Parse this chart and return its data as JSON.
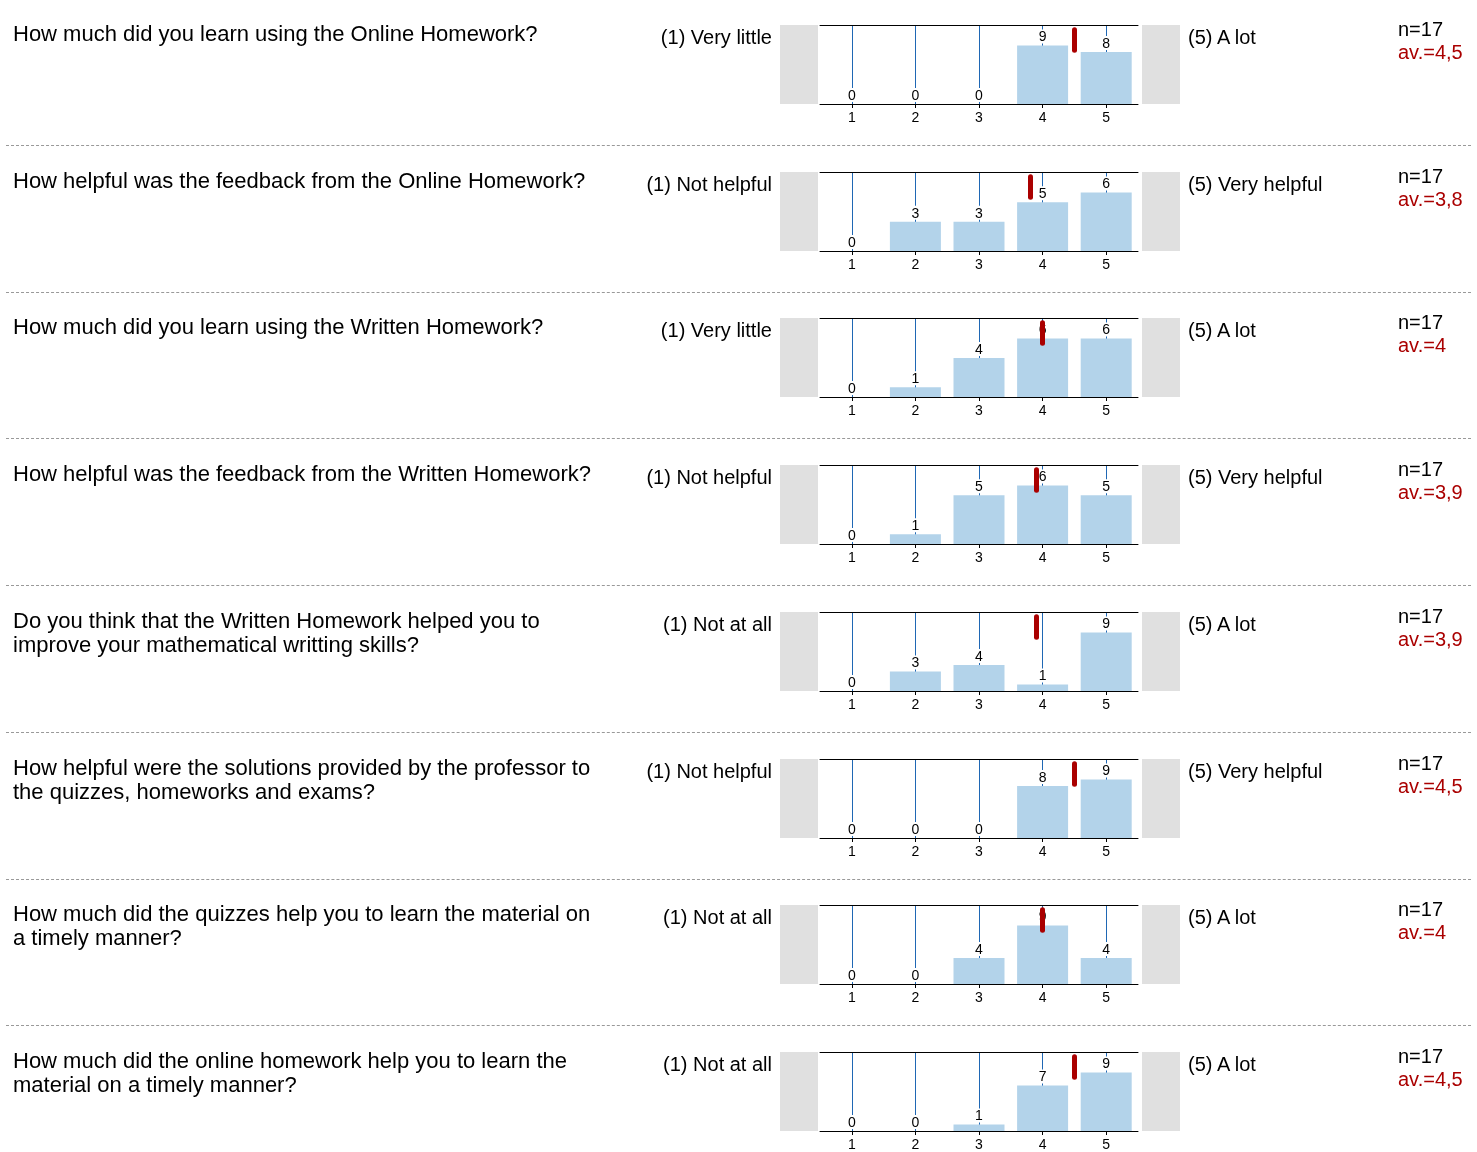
{
  "chart_data": [
    {
      "type": "bar",
      "ylabel": "How much did you learn using the Online Homework?",
      "x": [
        1,
        2,
        3,
        4,
        5
      ],
      "values": [
        0,
        0,
        0,
        9,
        8
      ],
      "color": "#b3d3ea",
      "xlim": [
        0.5,
        5.5
      ],
      "xticks": [
        1,
        2,
        3,
        4,
        5
      ],
      "tick_labels": "x",
      "grid": "x",
      "data_labels": true,
      "ref_lines": [
        {
          "axis": "x",
          "value": 4.5,
          "color": "#aa0000"
        }
      ],
      "annotations": [
        "(1) Very little",
        "(5) A lot",
        "n=17",
        "av.=4,5"
      ]
    },
    {
      "type": "bar",
      "ylabel": "How helpful was the feedback from the Online Homework?",
      "x": [
        1,
        2,
        3,
        4,
        5
      ],
      "values": [
        0,
        3,
        3,
        5,
        6
      ],
      "color": "#b3d3ea",
      "xlim": [
        0.5,
        5.5
      ],
      "xticks": [
        1,
        2,
        3,
        4,
        5
      ],
      "tick_labels": "x",
      "grid": "x",
      "data_labels": true,
      "ref_lines": [
        {
          "axis": "x",
          "value": 3.8,
          "color": "#aa0000"
        }
      ],
      "annotations": [
        "(1) Not helpful",
        "(5) Very helpful",
        "n=17",
        "av.=3,8"
      ]
    },
    {
      "type": "bar",
      "ylabel": "How much did you learn using the Written Homework?",
      "x": [
        1,
        2,
        3,
        4,
        5
      ],
      "values": [
        0,
        1,
        4,
        6,
        6
      ],
      "color": "#b3d3ea",
      "xlim": [
        0.5,
        5.5
      ],
      "xticks": [
        1,
        2,
        3,
        4,
        5
      ],
      "tick_labels": "x",
      "grid": "x",
      "data_labels": true,
      "ref_lines": [
        {
          "axis": "x",
          "value": 4,
          "color": "#aa0000"
        }
      ],
      "annotations": [
        "(1) Very little",
        "(5) A lot",
        "n=17",
        "av.=4"
      ]
    },
    {
      "type": "bar",
      "ylabel": "How helpful was the feedback from the Written Homework?",
      "x": [
        1,
        2,
        3,
        4,
        5
      ],
      "values": [
        0,
        1,
        5,
        6,
        5
      ],
      "color": "#b3d3ea",
      "xlim": [
        0.5,
        5.5
      ],
      "xticks": [
        1,
        2,
        3,
        4,
        5
      ],
      "tick_labels": "x",
      "grid": "x",
      "data_labels": true,
      "ref_lines": [
        {
          "axis": "x",
          "value": 3.9,
          "color": "#aa0000"
        }
      ],
      "annotations": [
        "(1) Not helpful",
        "(5) Very helpful",
        "n=17",
        "av.=3,9"
      ]
    },
    {
      "type": "bar",
      "ylabel": "Do you think that the Written Homework helped you to improve your mathematical writting skills?",
      "x": [
        1,
        2,
        3,
        4,
        5
      ],
      "values": [
        0,
        3,
        4,
        1,
        9
      ],
      "color": "#b3d3ea",
      "xlim": [
        0.5,
        5.5
      ],
      "xticks": [
        1,
        2,
        3,
        4,
        5
      ],
      "tick_labels": "x",
      "grid": "x",
      "data_labels": true,
      "ref_lines": [
        {
          "axis": "x",
          "value": 3.9,
          "color": "#aa0000"
        }
      ],
      "annotations": [
        "(1) Not at all",
        "(5) A lot",
        "n=17",
        "av.=3,9"
      ]
    },
    {
      "type": "bar",
      "ylabel": "How helpful were the solutions provided by the professor to the quizzes, homeworks and exams?",
      "x": [
        1,
        2,
        3,
        4,
        5
      ],
      "values": [
        0,
        0,
        0,
        8,
        9
      ],
      "color": "#b3d3ea",
      "xlim": [
        0.5,
        5.5
      ],
      "xticks": [
        1,
        2,
        3,
        4,
        5
      ],
      "tick_labels": "x",
      "grid": "x",
      "data_labels": true,
      "ref_lines": [
        {
          "axis": "x",
          "value": 4.5,
          "color": "#aa0000"
        }
      ],
      "annotations": [
        "(1) Not helpful",
        "(5) Very helpful",
        "n=17",
        "av.=4,5"
      ]
    },
    {
      "type": "bar",
      "ylabel": "How much did the quizzes help you to learn the material on a timely manner?",
      "x": [
        1,
        2,
        3,
        4,
        5
      ],
      "values": [
        0,
        0,
        4,
        9,
        4
      ],
      "color": "#b3d3ea",
      "xlim": [
        0.5,
        5.5
      ],
      "xticks": [
        1,
        2,
        3,
        4,
        5
      ],
      "tick_labels": "x",
      "grid": "x",
      "data_labels": true,
      "ref_lines": [
        {
          "axis": "x",
          "value": 4,
          "color": "#aa0000"
        }
      ],
      "annotations": [
        "(1) Not at all",
        "(5) A lot",
        "n=17",
        "av.=4"
      ]
    },
    {
      "type": "bar",
      "ylabel": "How much did the online homework help you to learn the material on a timely manner?",
      "x": [
        1,
        2,
        3,
        4,
        5
      ],
      "values": [
        0,
        0,
        1,
        7,
        9
      ],
      "color": "#b3d3ea",
      "xlim": [
        0.5,
        5.5
      ],
      "xticks": [
        1,
        2,
        3,
        4,
        5
      ],
      "tick_labels": "x",
      "grid": "x",
      "data_labels": true,
      "ref_lines": [
        {
          "axis": "x",
          "value": 4.5,
          "color": "#aa0000"
        }
      ],
      "annotations": [
        "(1) Not at all",
        "(5) A lot",
        "n=17",
        "av.=4,5"
      ]
    }
  ]
}
